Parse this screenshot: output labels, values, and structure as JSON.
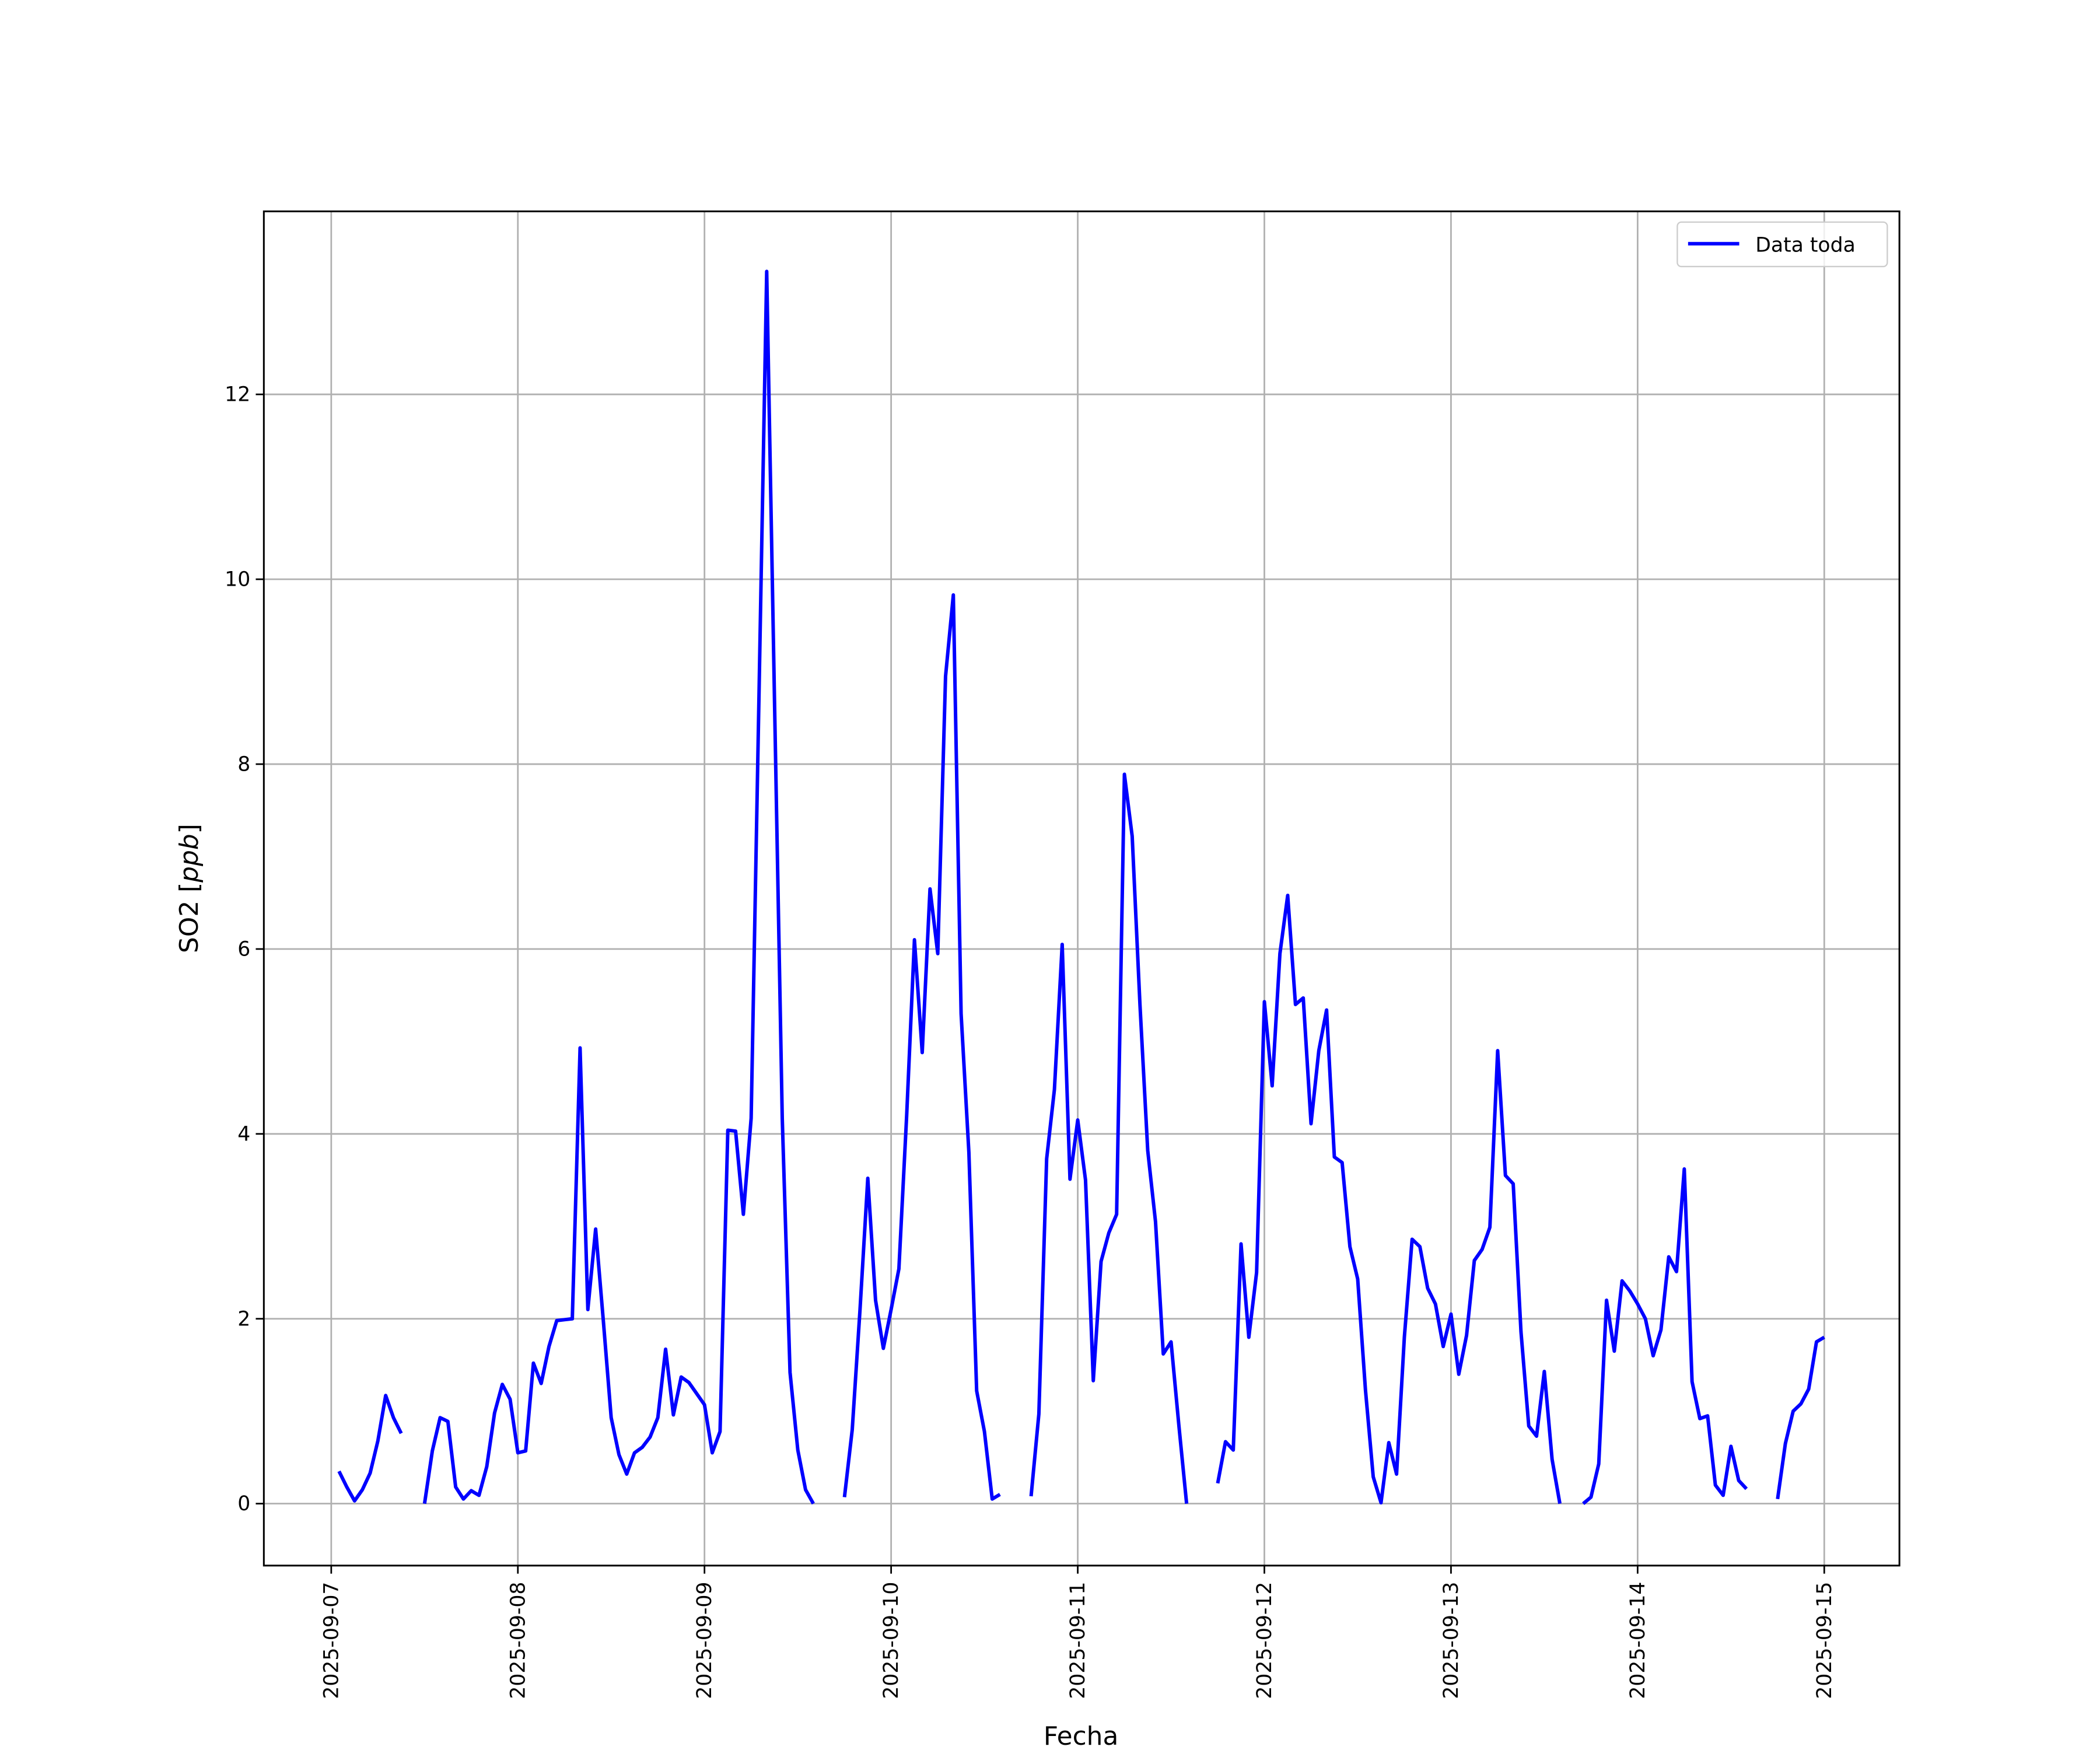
{
  "chart_data": {
    "type": "line",
    "title": "",
    "xlabel": "Fecha",
    "ylabel": "SO2 [",
    "ylabel_italic": "ppb",
    "ylabel_end": "]",
    "xlim": [
      "2025-09-06T15:20",
      "2025-09-15T09:40"
    ],
    "ylim": [
      -0.67,
      13.98
    ],
    "grid": true,
    "legend_placement": "top-right",
    "x_ticks": [
      "2025-09-07",
      "2025-09-08",
      "2025-09-09",
      "2025-09-10",
      "2025-09-11",
      "2025-09-12",
      "2025-09-13",
      "2025-09-14",
      "2025-09-15"
    ],
    "y_ticks": [
      0,
      2,
      4,
      6,
      8,
      10,
      12
    ],
    "x": [
      "2025-09-07T01:00",
      "2025-09-07T02:00",
      "2025-09-07T03:00",
      "2025-09-07T04:00",
      "2025-09-07T05:00",
      "2025-09-07T06:00",
      "2025-09-07T07:00",
      "2025-09-07T08:00",
      "2025-09-07T09:00",
      "2025-09-07T10:00",
      "2025-09-07T11:00",
      "2025-09-07T12:00",
      "2025-09-07T13:00",
      "2025-09-07T14:00",
      "2025-09-07T15:00",
      "2025-09-07T16:00",
      "2025-09-07T17:00",
      "2025-09-07T18:00",
      "2025-09-07T19:00",
      "2025-09-07T20:00",
      "2025-09-07T21:00",
      "2025-09-07T22:00",
      "2025-09-07T23:00",
      "2025-09-08T00:00",
      "2025-09-08T01:00",
      "2025-09-08T02:00",
      "2025-09-08T03:00",
      "2025-09-08T04:00",
      "2025-09-08T05:00",
      "2025-09-08T06:00",
      "2025-09-08T07:00",
      "2025-09-08T08:00",
      "2025-09-08T09:00",
      "2025-09-08T10:00",
      "2025-09-08T11:00",
      "2025-09-08T12:00",
      "2025-09-08T13:00",
      "2025-09-08T14:00",
      "2025-09-08T15:00",
      "2025-09-08T16:00",
      "2025-09-08T17:00",
      "2025-09-08T18:00",
      "2025-09-08T19:00",
      "2025-09-08T20:00",
      "2025-09-08T21:00",
      "2025-09-08T22:00",
      "2025-09-08T23:00",
      "2025-09-09T00:00",
      "2025-09-09T01:00",
      "2025-09-09T02:00",
      "2025-09-09T03:00",
      "2025-09-09T04:00",
      "2025-09-09T05:00",
      "2025-09-09T06:00",
      "2025-09-09T07:00",
      "2025-09-09T08:00",
      "2025-09-09T09:00",
      "2025-09-09T10:00",
      "2025-09-09T11:00",
      "2025-09-09T12:00",
      "2025-09-09T13:00",
      "2025-09-09T14:00",
      "2025-09-09T15:00",
      "2025-09-09T16:00",
      "2025-09-09T17:00",
      "2025-09-09T18:00",
      "2025-09-09T19:00",
      "2025-09-09T20:00",
      "2025-09-09T21:00",
      "2025-09-09T22:00",
      "2025-09-09T23:00",
      "2025-09-10T00:00",
      "2025-09-10T01:00",
      "2025-09-10T02:00",
      "2025-09-10T03:00",
      "2025-09-10T04:00",
      "2025-09-10T05:00",
      "2025-09-10T06:00",
      "2025-09-10T07:00",
      "2025-09-10T08:00",
      "2025-09-10T09:00",
      "2025-09-10T10:00",
      "2025-09-10T11:00",
      "2025-09-10T12:00",
      "2025-09-10T13:00",
      "2025-09-10T14:00",
      "2025-09-10T15:00",
      "2025-09-10T16:00",
      "2025-09-10T17:00",
      "2025-09-10T18:00",
      "2025-09-10T19:00",
      "2025-09-10T20:00",
      "2025-09-10T21:00",
      "2025-09-10T22:00",
      "2025-09-10T23:00",
      "2025-09-11T00:00",
      "2025-09-11T01:00",
      "2025-09-11T02:00",
      "2025-09-11T03:00",
      "2025-09-11T04:00",
      "2025-09-11T05:00",
      "2025-09-11T06:00",
      "2025-09-11T07:00",
      "2025-09-11T08:00",
      "2025-09-11T09:00",
      "2025-09-11T10:00",
      "2025-09-11T11:00",
      "2025-09-11T12:00",
      "2025-09-11T13:00",
      "2025-09-11T14:00",
      "2025-09-11T15:00",
      "2025-09-11T16:00",
      "2025-09-11T17:00",
      "2025-09-11T18:00",
      "2025-09-11T19:00",
      "2025-09-11T20:00",
      "2025-09-11T21:00",
      "2025-09-11T22:00",
      "2025-09-11T23:00",
      "2025-09-12T00:00",
      "2025-09-12T01:00",
      "2025-09-12T02:00",
      "2025-09-12T03:00",
      "2025-09-12T04:00",
      "2025-09-12T05:00",
      "2025-09-12T06:00",
      "2025-09-12T07:00",
      "2025-09-12T08:00",
      "2025-09-12T09:00",
      "2025-09-12T10:00",
      "2025-09-12T11:00",
      "2025-09-12T12:00",
      "2025-09-12T13:00",
      "2025-09-12T14:00",
      "2025-09-12T15:00",
      "2025-09-12T16:00",
      "2025-09-12T17:00",
      "2025-09-12T18:00",
      "2025-09-12T19:00",
      "2025-09-12T20:00",
      "2025-09-12T21:00",
      "2025-09-12T22:00",
      "2025-09-12T23:00",
      "2025-09-13T00:00",
      "2025-09-13T01:00",
      "2025-09-13T02:00",
      "2025-09-13T03:00",
      "2025-09-13T04:00",
      "2025-09-13T05:00",
      "2025-09-13T06:00",
      "2025-09-13T07:00",
      "2025-09-13T08:00",
      "2025-09-13T09:00",
      "2025-09-13T10:00",
      "2025-09-13T11:00",
      "2025-09-13T12:00",
      "2025-09-13T13:00",
      "2025-09-13T14:00",
      "2025-09-13T15:00",
      "2025-09-13T16:00",
      "2025-09-13T17:00",
      "2025-09-13T18:00",
      "2025-09-13T19:00",
      "2025-09-13T20:00",
      "2025-09-13T21:00",
      "2025-09-13T22:00",
      "2025-09-13T23:00",
      "2025-09-14T00:00",
      "2025-09-14T01:00",
      "2025-09-14T02:00",
      "2025-09-14T03:00",
      "2025-09-14T04:00",
      "2025-09-14T05:00",
      "2025-09-14T06:00",
      "2025-09-14T07:00",
      "2025-09-14T08:00",
      "2025-09-14T09:00",
      "2025-09-14T10:00",
      "2025-09-14T11:00",
      "2025-09-14T12:00",
      "2025-09-14T13:00",
      "2025-09-14T14:00",
      "2025-09-14T15:00",
      "2025-09-14T16:00",
      "2025-09-14T17:00",
      "2025-09-14T18:00",
      "2025-09-14T19:00",
      "2025-09-14T20:00",
      "2025-09-14T21:00",
      "2025-09-14T22:00",
      "2025-09-14T23:00",
      "2025-09-15T00:00"
    ],
    "series": [
      {
        "name": "Data toda",
        "color": "#0000ff",
        "values": [
          0.35,
          0.18,
          0.03,
          0.15,
          0.33,
          0.68,
          1.17,
          0.93,
          0.76,
          null,
          null,
          0.0,
          0.57,
          0.93,
          0.89,
          0.18,
          0.05,
          0.14,
          0.09,
          0.4,
          0.98,
          1.29,
          1.13,
          0.55,
          0.57,
          1.52,
          1.3,
          1.7,
          1.98,
          1.99,
          2.0,
          4.93,
          2.1,
          2.97,
          1.97,
          0.93,
          0.53,
          0.32,
          0.55,
          0.61,
          0.72,
          0.93,
          1.67,
          0.96,
          1.37,
          1.31,
          1.19,
          1.07,
          0.55,
          0.78,
          4.04,
          4.03,
          3.13,
          4.17,
          8.7,
          13.33,
          8.7,
          4.17,
          1.42,
          0.58,
          0.15,
          0.0,
          null,
          null,
          null,
          0.07,
          0.8,
          2.1,
          3.52,
          2.2,
          1.68,
          2.1,
          2.54,
          4.2,
          6.1,
          4.88,
          6.65,
          5.95,
          8.95,
          9.83,
          5.3,
          3.8,
          1.22,
          0.78,
          0.05,
          0.1,
          null,
          null,
          null,
          0.08,
          0.97,
          3.73,
          4.48,
          6.05,
          3.51,
          4.15,
          3.5,
          1.33,
          2.62,
          2.93,
          3.13,
          7.89,
          7.22,
          5.4,
          3.82,
          3.05,
          1.62,
          1.75,
          0.85,
          0.0,
          null,
          null,
          null,
          0.22,
          0.67,
          0.58,
          2.81,
          1.8,
          2.5,
          5.43,
          4.52,
          5.95,
          6.58,
          5.4,
          5.47,
          4.11,
          4.9,
          5.34,
          3.75,
          3.69,
          2.78,
          2.43,
          1.23,
          0.29,
          0.01,
          0.66,
          0.32,
          1.8,
          2.86,
          2.78,
          2.33,
          2.16,
          1.7,
          2.05,
          1.4,
          1.82,
          2.63,
          2.75,
          2.99,
          4.9,
          3.55,
          3.46,
          1.86,
          0.84,
          0.73,
          1.43,
          0.48,
          0.0,
          null,
          null,
          0.0,
          0.07,
          0.43,
          2.2,
          1.65,
          2.41,
          2.3,
          2.16,
          2.0,
          1.6,
          1.88,
          2.67,
          2.51,
          3.62,
          1.32,
          0.92,
          0.95,
          0.2,
          0.09,
          0.62,
          0.25,
          0.16,
          null,
          null,
          null,
          0.05,
          0.65,
          1.0,
          1.08,
          1.24,
          1.75,
          1.8
        ]
      }
    ]
  }
}
